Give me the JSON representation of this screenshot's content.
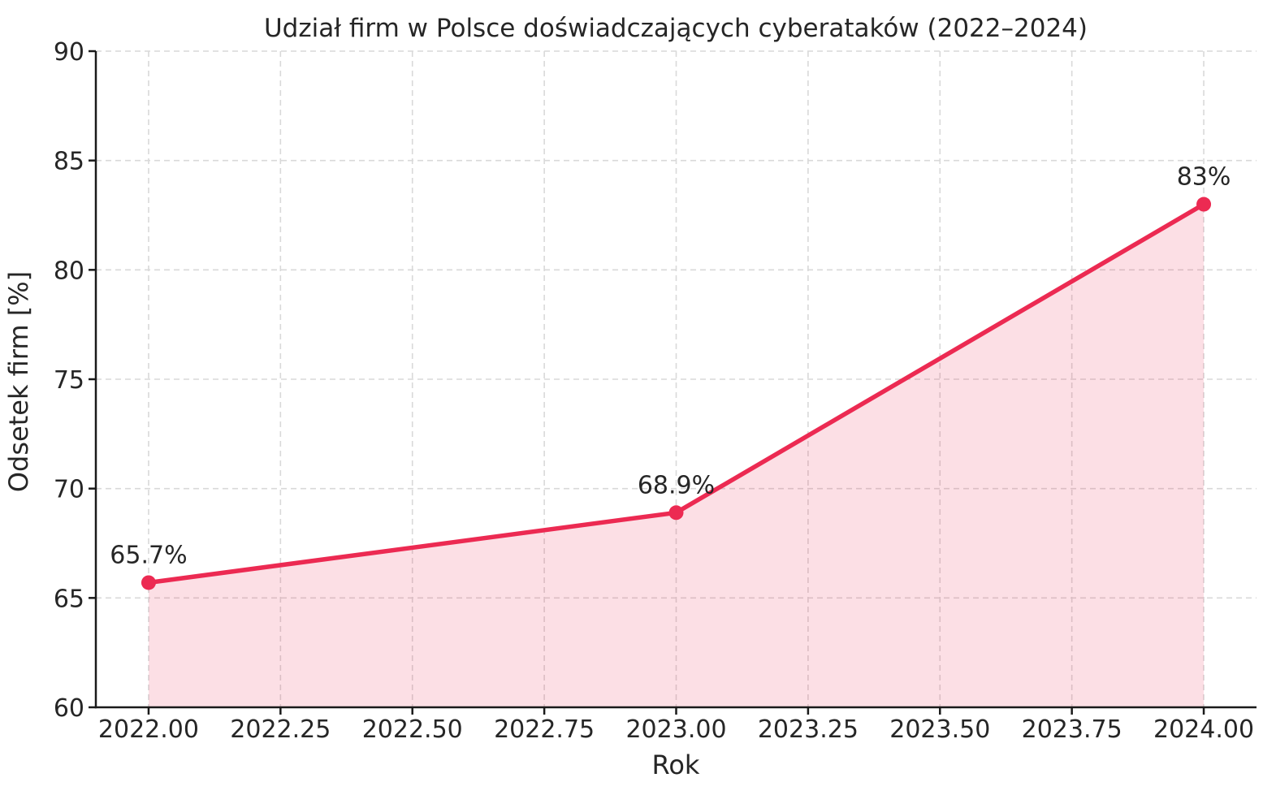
{
  "page": {
    "background": "#ffffff"
  },
  "chart_data": {
    "type": "area",
    "title": "Udział firm w Polsce doświadczających cyberataków (2022–2024)",
    "xlabel": "Rok",
    "ylabel": "Odsetek firm [%]",
    "x": [
      2022,
      2023,
      2024
    ],
    "y": [
      65.7,
      68.9,
      83
    ],
    "point_labels": [
      "65.7%",
      "68.9%",
      "83%"
    ],
    "xlim": [
      2021.9,
      2024.1
    ],
    "ylim": [
      60,
      90
    ],
    "xticks": [
      2022.0,
      2022.25,
      2022.5,
      2022.75,
      2023.0,
      2023.25,
      2023.5,
      2023.75,
      2024.0
    ],
    "xtick_labels": [
      "2022.00",
      "2022.25",
      "2022.50",
      "2022.75",
      "2023.00",
      "2023.25",
      "2023.50",
      "2023.75",
      "2024.00"
    ],
    "yticks": [
      60,
      65,
      70,
      75,
      80,
      85,
      90
    ],
    "ytick_labels": [
      "60",
      "65",
      "70",
      "75",
      "80",
      "85",
      "90"
    ],
    "fill_baseline": 60,
    "grid": {
      "visible": true,
      "style": "dashed"
    },
    "legend": {
      "visible": false
    },
    "colors": {
      "line": "#EC2A52",
      "marker": "#EC2A52",
      "fill": "rgba(236,42,82,0.15)",
      "grid": "#d9d9d9",
      "spine": "#1a1a1a",
      "text": "#262626"
    }
  }
}
